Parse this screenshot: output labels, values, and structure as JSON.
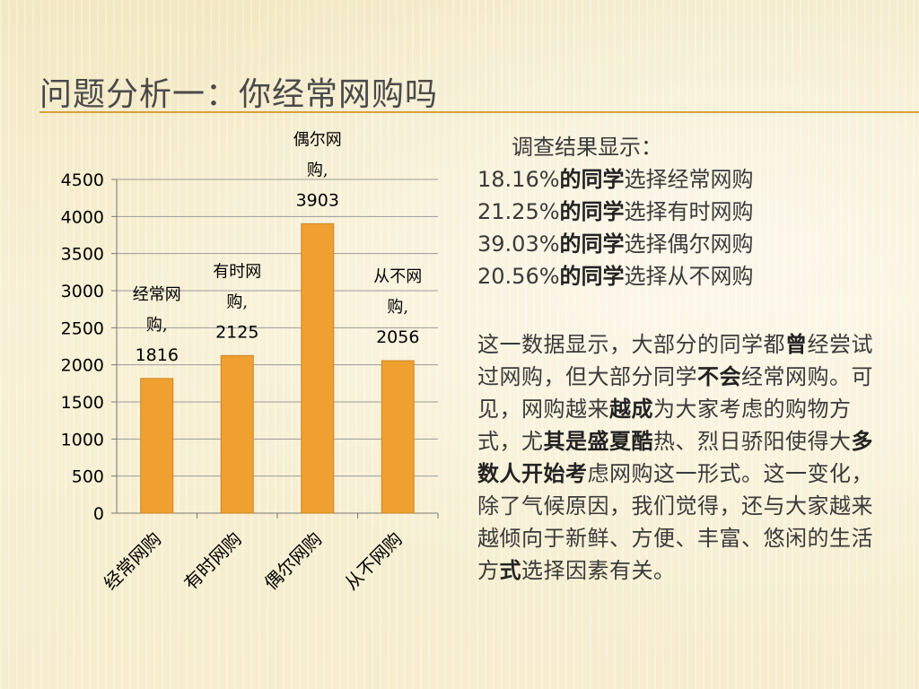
{
  "slide": {
    "title": "问题分析一：你经常网购吗"
  },
  "results": {
    "heading": "调查结果显示：",
    "lines": [
      {
        "value": "18.16%",
        "bold": "的同学",
        "rest": "选择经常网购"
      },
      {
        "value": "21.25%",
        "bold": "的同学",
        "rest": "选择有时网购"
      },
      {
        "value": "39.03%",
        "bold": "的同学",
        "rest": "选择偶尔网购"
      },
      {
        "value": "20.56%",
        "bold": "的同学",
        "rest": "选择从不网购"
      }
    ]
  },
  "paragraph": {
    "segments": [
      {
        "text": "这一数据显示，大部分的同学都",
        "bold": false
      },
      {
        "text": "曾",
        "bold": true
      },
      {
        "text": "经尝试过网购，但大部分同学",
        "bold": false
      },
      {
        "text": "不会",
        "bold": true
      },
      {
        "text": "经常网购。可见，网购越来",
        "bold": false
      },
      {
        "text": "越成",
        "bold": true
      },
      {
        "text": "为大家考虑的购物方式，尤",
        "bold": false
      },
      {
        "text": "其是盛夏酷",
        "bold": true
      },
      {
        "text": "热、烈日骄阳使得大",
        "bold": false
      },
      {
        "text": "多数人开始考",
        "bold": true
      },
      {
        "text": "虑网购这一形式。这一变化，除了气候原因，我们觉得，还与大家越来越倾向于新鲜、方便、丰富、悠闲的生活方",
        "bold": false
      },
      {
        "text": "式",
        "bold": true
      },
      {
        "text": "选择因素有关。",
        "bold": false
      }
    ]
  },
  "chart_data": {
    "type": "bar",
    "categories": [
      "经常网购",
      "有时网购",
      "偶尔网购",
      "从不网购"
    ],
    "values": [
      1816,
      2125,
      3903,
      2056
    ],
    "data_labels": [
      {
        "name": "经常网购,",
        "value": "1816"
      },
      {
        "name": "有时网购,",
        "value": "2125"
      },
      {
        "name": "偶尔网购,",
        "value": "3903"
      },
      {
        "name": "从不网购,",
        "value": "2056"
      }
    ],
    "ylim": [
      0,
      4500
    ],
    "yticks": [
      0,
      500,
      1000,
      1500,
      2000,
      2500,
      3000,
      3500,
      4000,
      4500
    ],
    "grid": true,
    "bar_color": "#f0a030",
    "gridline_color": "#9a9a9a"
  }
}
